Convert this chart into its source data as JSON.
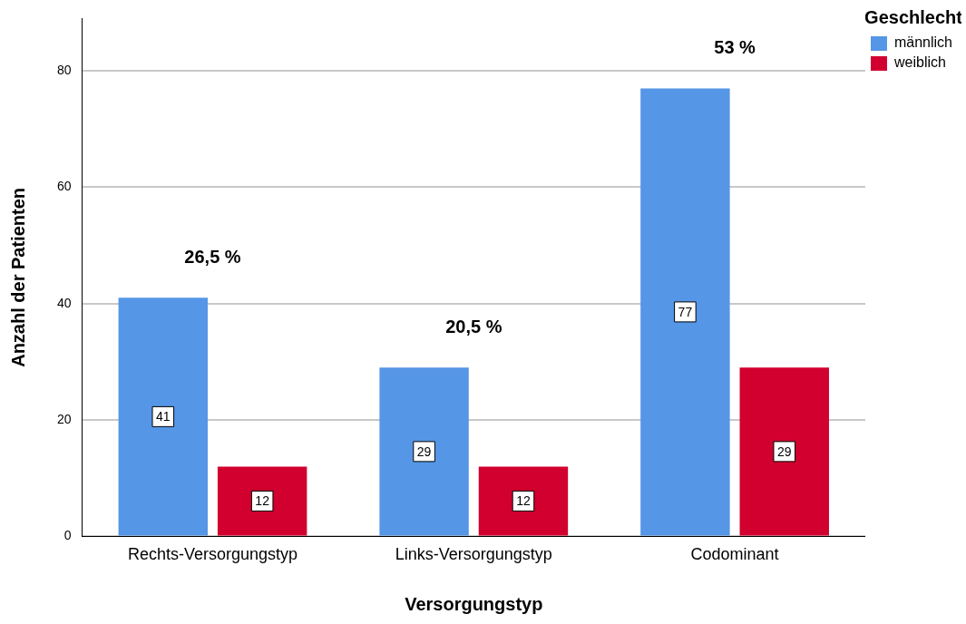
{
  "chart_data": {
    "type": "bar",
    "xlabel": "Versorgungstyp",
    "ylabel": "Anzahl der Patienten",
    "legend_title": "Geschlecht",
    "categories": [
      "Rechts-Versorgungstyp",
      "Links-Versorgungstyp",
      "Codominant"
    ],
    "series": [
      {
        "name": "männlich",
        "color": "#5596e6",
        "values": [
          41,
          29,
          77
        ]
      },
      {
        "name": "weiblich",
        "color": "#d1002f",
        "values": [
          12,
          12,
          29
        ]
      }
    ],
    "ylim": [
      0,
      89
    ],
    "yticks": [
      0,
      20,
      40,
      60,
      80
    ],
    "grid": "y",
    "legend": "top right",
    "data_labels": true,
    "annotations": [
      "26,5 %",
      "20,5 %",
      "53 %"
    ]
  }
}
